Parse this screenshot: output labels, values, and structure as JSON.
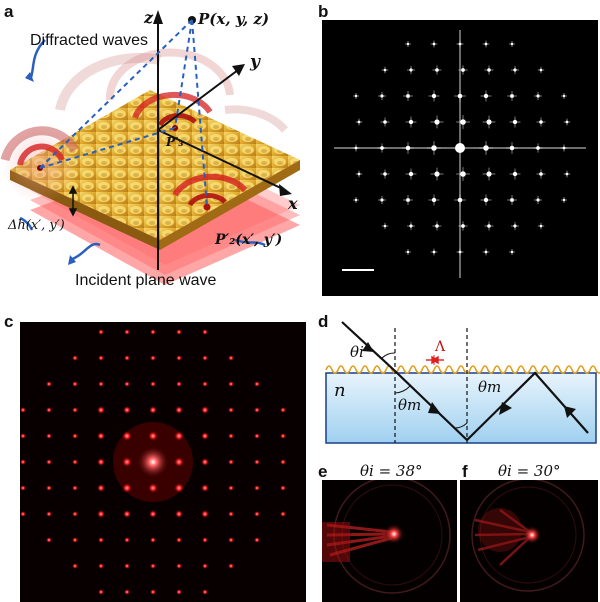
{
  "panels": {
    "a": "a",
    "b": "b",
    "c": "c",
    "d": "d",
    "e": "e",
    "f": "f"
  },
  "panel_a": {
    "diffracted_label": "Diffracted waves",
    "incident_label": "Incident plane wave",
    "point_P": "P(x, y, z)",
    "point_P3": "P′₃",
    "point_P2": "P′₂(x′, y′)",
    "height_label": "Δh(x′, y′)",
    "axis_z": "z",
    "axis_y": "y",
    "axis_x": "x"
  },
  "panel_d": {
    "theta_i": "θi",
    "Lambda": "Λ",
    "n": "n",
    "theta_m_1": "θm",
    "theta_m_2": "θm"
  },
  "panel_e": {
    "title": "θi = 38°"
  },
  "panel_f": {
    "title": "θi = 30°"
  },
  "colors": {
    "surface_gold": "#e8b83c",
    "wave_red": "#d42020",
    "beam_red": "#ff3030",
    "axis_black": "#111111",
    "dashed_blue": "#2a5fbf",
    "waveguide_blue": "#bfe0f5"
  }
}
